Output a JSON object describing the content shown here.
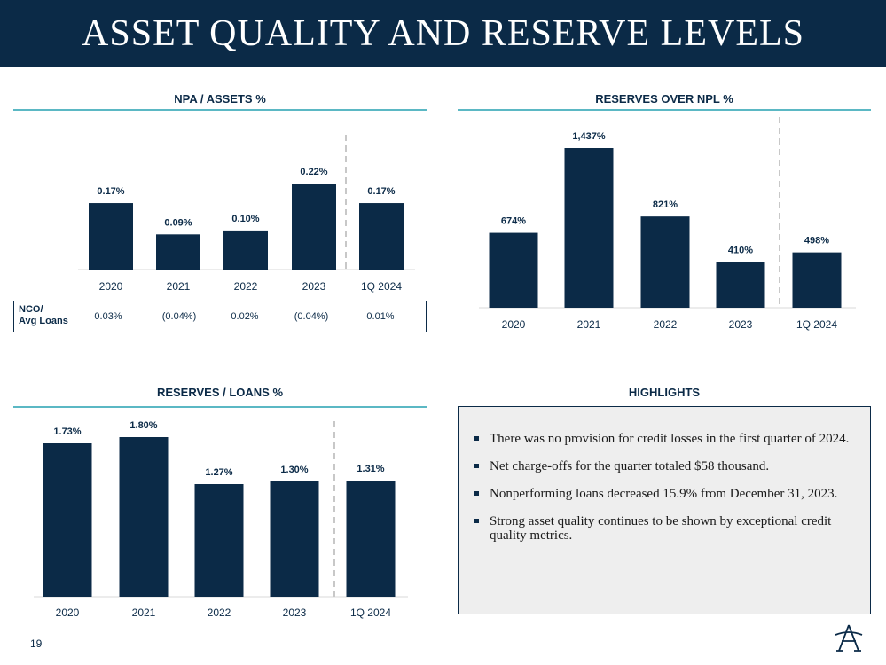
{
  "header": {
    "title": "ASSET QUALITY AND RESERVE LEVELS"
  },
  "panels": {
    "npa_title": "NPA / ASSETS %",
    "reserves_npl_title": "RESERVES OVER NPL %",
    "reserves_loans_title": "RESERVES / LOANS %",
    "highlights_title": "HIGHLIGHTS"
  },
  "nco": {
    "label_line1": "NCO/",
    "label_line2": "Avg Loans",
    "values": [
      "0.03%",
      "(0.04%)",
      "0.02%",
      "(0.04%)",
      "0.01%"
    ]
  },
  "highlights": [
    "There was no provision for credit losses in the first quarter of 2024.",
    "Net charge-offs for the quarter totaled $58 thousand.",
    "Nonperforming loans decreased 15.9% from December 31, 2023.",
    "Strong asset quality continues to be shown by exceptional credit quality metrics."
  ],
  "footer": {
    "page_number": "19"
  },
  "colors": {
    "bar": "#0b2a47",
    "accent_rule": "#5bb8c4",
    "title_bar": "#0b2a47"
  },
  "chart_data": [
    {
      "type": "bar",
      "title": "NPA / ASSETS %",
      "categories": [
        "2020",
        "2021",
        "2022",
        "2023",
        "1Q 2024"
      ],
      "values": [
        0.17,
        0.09,
        0.1,
        0.22,
        0.17
      ],
      "labels": [
        "0.17%",
        "0.09%",
        "0.10%",
        "0.22%",
        "0.17%"
      ],
      "ylim": [
        0,
        0.22
      ]
    },
    {
      "type": "bar",
      "title": "RESERVES OVER NPL %",
      "categories": [
        "2020",
        "2021",
        "2022",
        "2023",
        "1Q 2024"
      ],
      "values": [
        674,
        1437,
        821,
        410,
        498
      ],
      "labels": [
        "674%",
        "1,437%",
        "821%",
        "410%",
        "498%"
      ],
      "ylim": [
        0,
        1437
      ]
    },
    {
      "type": "bar",
      "title": "RESERVES / LOANS %",
      "categories": [
        "2020",
        "2021",
        "2022",
        "2023",
        "1Q 2024"
      ],
      "values": [
        1.73,
        1.8,
        1.27,
        1.3,
        1.31
      ],
      "labels": [
        "1.73%",
        "1.80%",
        "1.27%",
        "1.30%",
        "1.31%"
      ],
      "ylim": [
        0,
        1.8
      ]
    }
  ]
}
